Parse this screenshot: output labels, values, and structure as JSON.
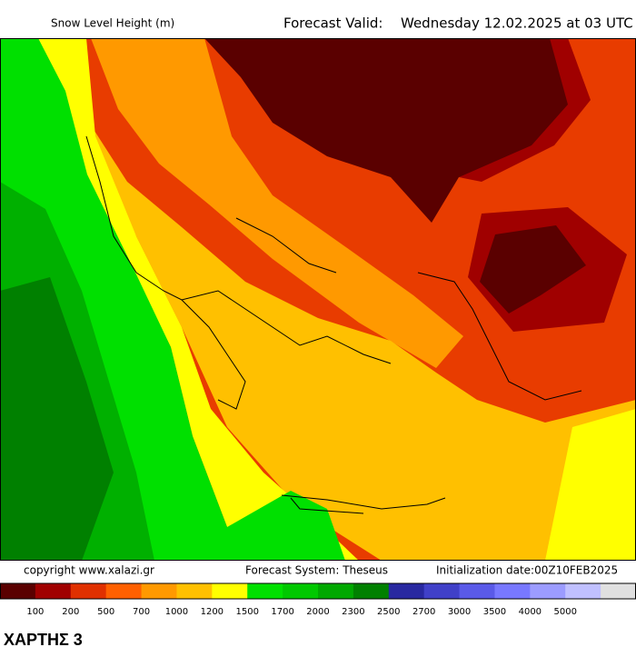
{
  "header": {
    "title": "Snow Level Height (m)",
    "valid_label": "Forecast Valid:",
    "valid_time": "Wednesday 12.02.2025 at 03 UTC"
  },
  "footer": {
    "copyright": "copyright www.xalazi.gr",
    "system": "Forecast System: Theseus",
    "init": "Initialization date:00Z10FEB2025"
  },
  "legend": {
    "colors": [
      "#5a0000",
      "#a00000",
      "#e03000",
      "#ff6000",
      "#ff9900",
      "#ffc000",
      "#ffff00",
      "#00e000",
      "#00c800",
      "#00a800",
      "#008000",
      "#2828a0",
      "#4040c8",
      "#5a5ae8",
      "#7878ff",
      "#9c9cff",
      "#c0c0ff",
      "#e0e0e0"
    ],
    "labels": [
      "100",
      "200",
      "500",
      "700",
      "1000",
      "1200",
      "1500",
      "1700",
      "2000",
      "2300",
      "2500",
      "2700",
      "3000",
      "3500",
      "4000",
      "5000"
    ]
  },
  "caption": "ΧΑΡΤΗΣ 3"
}
